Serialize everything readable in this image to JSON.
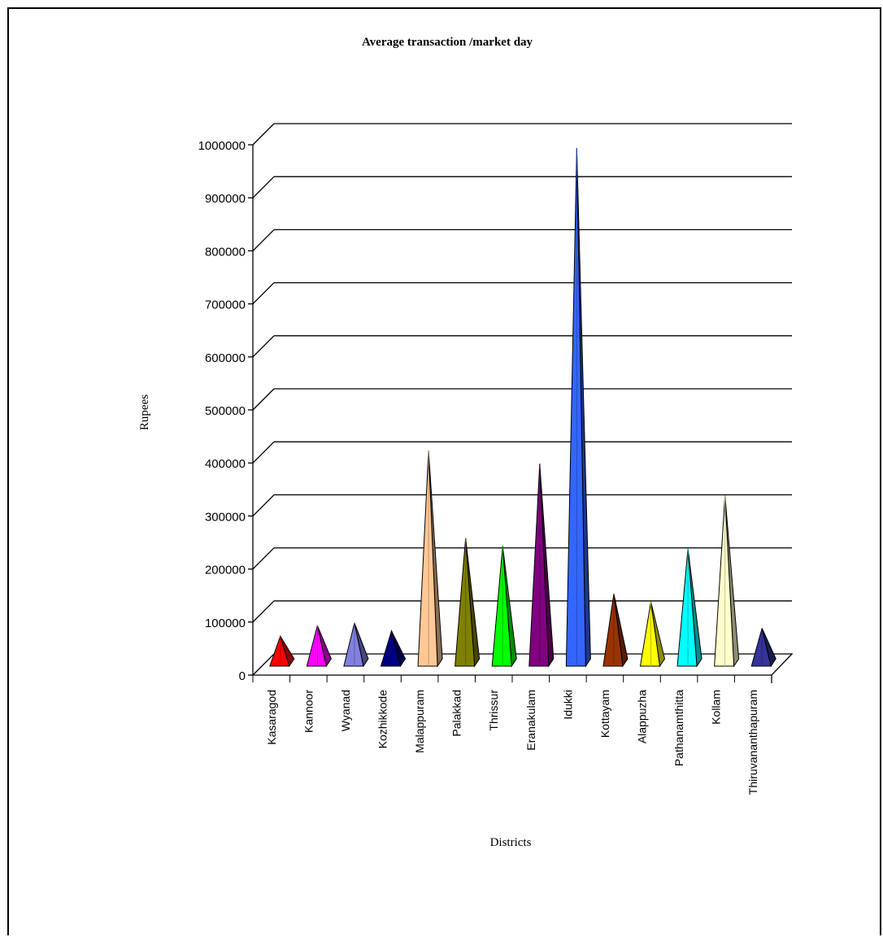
{
  "chart_data": {
    "type": "bar",
    "style": "3d-pyramid",
    "title": "Average transaction /market day",
    "xlabel": "Districts",
    "ylabel": "Rupees",
    "ylim": [
      0,
      1000000
    ],
    "yticks": [
      "0",
      "100000",
      "200000",
      "300000",
      "400000",
      "500000",
      "600000",
      "700000",
      "800000",
      "900000",
      "1000000"
    ],
    "grid": true,
    "legend": "none",
    "categories": [
      "Kasaragod",
      "Kannoor",
      "Wyanad",
      "Kozhikkode",
      "Malappuram",
      "Palakkad",
      "Thrissur",
      "Eranakulam",
      "Idukki",
      "Kottayam",
      "Alappuzha",
      "Pathanamthitta",
      "Kollam",
      "Thiruvananthapuram"
    ],
    "values": [
      55000,
      75000,
      80000,
      65000,
      405000,
      240000,
      225000,
      380000,
      975000,
      135000,
      120000,
      220000,
      320000,
      70000
    ],
    "colors": [
      "#ff0000",
      "#ff00ff",
      "#8080e0",
      "#000080",
      "#ffc896",
      "#808000",
      "#00ff00",
      "#800080",
      "#3366ff",
      "#993300",
      "#ffff00",
      "#00ffff",
      "#ffffcc",
      "#333399"
    ]
  }
}
